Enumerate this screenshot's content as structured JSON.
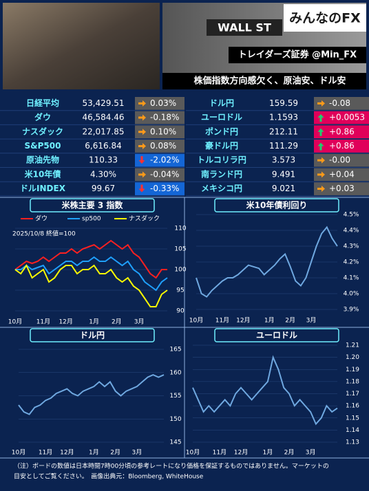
{
  "header": {
    "logo": "みんなのFX",
    "banner": "トレイダーズ証券 @Min_FX",
    "headline": "株価指数方向感欠く、原油安、ドル安",
    "photo_sign": "WALL ST"
  },
  "table": {
    "left": [
      {
        "name": "日経平均",
        "value": "53,429.51",
        "change": "0.03%",
        "trend": "flat"
      },
      {
        "name": "ダウ",
        "value": "46,584.46",
        "change": "-0.18%",
        "trend": "flat"
      },
      {
        "name": "ナスダック",
        "value": "22,017.85",
        "change": "0.10%",
        "trend": "flat"
      },
      {
        "name": "S&P500",
        "value": "6,616.84",
        "change": "0.08%",
        "trend": "flat"
      },
      {
        "name": "原油先物",
        "value": "110.33",
        "change": "-2.02%",
        "trend": "down"
      },
      {
        "name": "米10年債",
        "value": "4.30%",
        "change": "-0.04%",
        "trend": "flat"
      },
      {
        "name": "ドルINDEX",
        "value": "99.67",
        "change": "-0.33%",
        "trend": "down"
      }
    ],
    "right": [
      {
        "name": "ドル円",
        "value": "159.59",
        "change": "-0.08",
        "trend": "flat"
      },
      {
        "name": "ユーロドル",
        "value": "1.1593",
        "change": "+0.0053",
        "trend": "up"
      },
      {
        "name": "ポンド円",
        "value": "212.11",
        "change": "+0.86",
        "trend": "up"
      },
      {
        "name": "豪ドル円",
        "value": "111.29",
        "change": "+0.86",
        "trend": "up"
      },
      {
        "name": "トルコリラ円",
        "value": "3.573",
        "change": "-0.00",
        "trend": "flat"
      },
      {
        "name": "南ランド円",
        "value": "9.491",
        "change": "+0.04",
        "trend": "flat"
      },
      {
        "name": "メキシコ円",
        "value": "9.021",
        "change": "+0.03",
        "trend": "flat"
      }
    ]
  },
  "chart_data": [
    {
      "type": "line",
      "title": "米株主要 3 指数",
      "annotation": "2025/10/8 終値=100",
      "categories": [
        "10月",
        null,
        null,
        null,
        null,
        "11月",
        null,
        null,
        null,
        "12月",
        null,
        null,
        null,
        null,
        "1月",
        null,
        null,
        null,
        "2月",
        null,
        null,
        null,
        "3月",
        null,
        null,
        null,
        null,
        null
      ],
      "series": [
        {
          "name": "ダウ",
          "color": "#ff2020",
          "values": [
            100,
            101,
            102,
            101.5,
            102,
            103,
            102,
            103,
            104,
            104,
            105,
            104,
            105,
            105.5,
            106,
            105,
            106,
            107,
            106,
            105,
            106,
            104,
            103,
            101,
            99,
            98,
            100,
            100
          ]
        },
        {
          "name": "sp500",
          "color": "#1fa0ff",
          "values": [
            100,
            100,
            101,
            100,
            100.5,
            101,
            99,
            100,
            101,
            102,
            102,
            101,
            102,
            102,
            103,
            102,
            102,
            103,
            102,
            101,
            102,
            100,
            99,
            97,
            96,
            95,
            97,
            98
          ]
        },
        {
          "name": "ナスダック",
          "color": "#ffff00",
          "values": [
            100,
            99,
            101,
            98,
            99,
            100,
            97,
            98,
            100,
            101,
            101,
            99,
            100,
            100,
            101,
            99,
            99,
            100,
            98,
            97,
            98,
            96,
            95,
            93,
            91,
            91,
            94,
            95
          ]
        }
      ],
      "ylim": [
        88,
        112
      ],
      "yticks": [
        90,
        95,
        100,
        105,
        110
      ],
      "grid": true,
      "legend": "top"
    },
    {
      "type": "line",
      "title": "米10年債利回り",
      "categories": [
        "10月",
        null,
        null,
        null,
        null,
        "11月",
        null,
        null,
        null,
        "12月",
        null,
        null,
        null,
        null,
        "1月",
        null,
        null,
        null,
        "2月",
        null,
        null,
        null,
        "3月",
        null,
        null,
        null,
        null,
        null
      ],
      "series": [
        {
          "name": null,
          "color": "#6fa8e0",
          "values": [
            4.1,
            4.0,
            3.98,
            4.02,
            4.05,
            4.08,
            4.1,
            4.1,
            4.12,
            4.15,
            4.18,
            4.17,
            4.16,
            4.12,
            4.15,
            4.18,
            4.22,
            4.25,
            4.17,
            4.08,
            4.05,
            4.1,
            4.2,
            4.3,
            4.38,
            4.42,
            4.35,
            4.3
          ]
        }
      ],
      "ylim": [
        3.88,
        4.52
      ],
      "yticks": [
        {
          "value": 3.9,
          "label": "3.9%"
        },
        {
          "value": 4.0,
          "label": "4.0%"
        },
        {
          "value": 4.1,
          "label": "4.1%"
        },
        {
          "value": 4.2,
          "label": "4.2%"
        },
        {
          "value": 4.3,
          "label": "4.3%"
        },
        {
          "value": 4.4,
          "label": "4.4%"
        },
        {
          "value": 4.5,
          "label": "4.5%"
        }
      ],
      "grid": true
    },
    {
      "type": "line",
      "title": "ドル円",
      "categories": [
        "10月",
        null,
        null,
        null,
        null,
        "11月",
        null,
        null,
        null,
        "12月",
        null,
        null,
        null,
        null,
        "1月",
        null,
        null,
        null,
        "2月",
        null,
        null,
        null,
        "3月",
        null,
        null,
        null,
        null,
        null
      ],
      "series": [
        {
          "name": null,
          "color": "#6fa8e0",
          "values": [
            153,
            151.5,
            151,
            152.5,
            153,
            154,
            154.5,
            155.5,
            156,
            156.5,
            155.5,
            155,
            156,
            156.5,
            157,
            158,
            157,
            158,
            156,
            155,
            156,
            156.5,
            157,
            158,
            159,
            159.5,
            159,
            159.5
          ]
        }
      ],
      "ylim": [
        143,
        167
      ],
      "yticks": [
        145,
        150,
        155,
        160,
        165
      ],
      "grid": true
    },
    {
      "type": "line",
      "title": "ユーロドル",
      "categories": [
        "10月",
        null,
        null,
        null,
        null,
        "11月",
        null,
        null,
        null,
        "12月",
        null,
        null,
        null,
        null,
        "1月",
        null,
        null,
        null,
        "2月",
        null,
        null,
        null,
        "3月",
        null,
        null,
        null,
        null,
        null
      ],
      "series": [
        {
          "name": null,
          "color": "#6fa8e0",
          "values": [
            1.175,
            1.165,
            1.155,
            1.16,
            1.155,
            1.16,
            1.165,
            1.16,
            1.17,
            1.175,
            1.17,
            1.165,
            1.17,
            1.175,
            1.18,
            1.2,
            1.19,
            1.175,
            1.17,
            1.16,
            1.165,
            1.16,
            1.155,
            1.145,
            1.15,
            1.16,
            1.155,
            1.158
          ]
        }
      ],
      "ylim": [
        1.128,
        1.215
      ],
      "yticks": [
        1.13,
        1.14,
        1.15,
        1.16,
        1.17,
        1.18,
        1.19,
        {
          "value": 1.2,
          "label": "1.20"
        },
        1.21
      ],
      "grid": true
    }
  ],
  "footnote": [
    "（注）ボードの数値は日本時間7時00分頃の参考レートになり価格を保証するものではありません。マーケットの",
    "目安としてご覧ください。　画像出典元：Bloomberg, WhiteHouse"
  ]
}
